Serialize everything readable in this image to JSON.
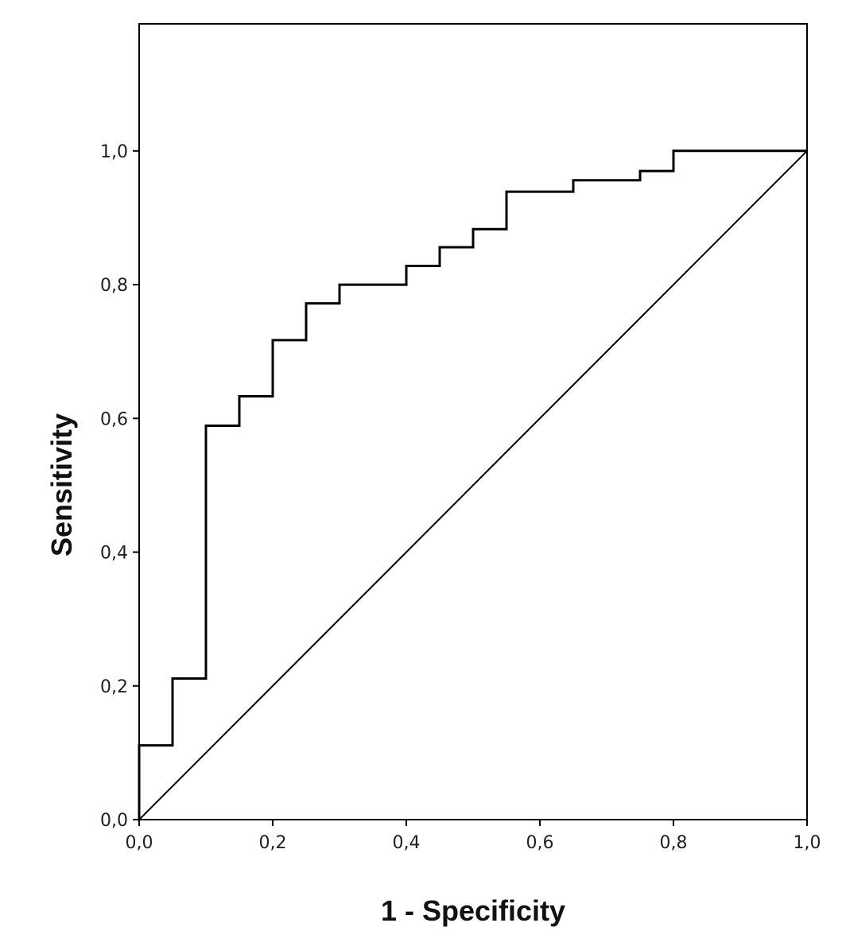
{
  "chart_data": {
    "type": "line",
    "title": "",
    "xlabel": "1 - Specificity",
    "ylabel": "Sensitivity",
    "xlim": [
      0.0,
      1.0
    ],
    "ylim": [
      0.0,
      1.19
    ],
    "x_ticks": [
      0.0,
      0.2,
      0.4,
      0.6,
      0.8,
      1.0
    ],
    "y_ticks": [
      0.0,
      0.2,
      0.4,
      0.6,
      0.8,
      1.0
    ],
    "x_tick_labels": [
      "0,0",
      "0,2",
      "0,4",
      "0,6",
      "0,8",
      "1,0"
    ],
    "y_tick_labels": [
      "0,0",
      "0,2",
      "0,4",
      "0,6",
      "0,8",
      "1,0"
    ],
    "grid": false,
    "series": [
      {
        "step": true,
        "x": [
          0.0,
          0.0,
          0.05,
          0.05,
          0.1,
          0.1,
          0.15,
          0.15,
          0.2,
          0.2,
          0.25,
          0.25,
          0.3,
          0.3,
          0.4,
          0.4,
          0.45,
          0.45,
          0.5,
          0.5,
          0.55,
          0.55,
          0.65,
          0.65,
          0.75,
          0.75,
          0.8,
          0.8,
          1.0
        ],
        "y": [
          0.0,
          0.111,
          0.111,
          0.211,
          0.211,
          0.589,
          0.589,
          0.633,
          0.633,
          0.717,
          0.717,
          0.772,
          0.772,
          0.8,
          0.8,
          0.828,
          0.828,
          0.856,
          0.856,
          0.883,
          0.883,
          0.939,
          0.939,
          0.956,
          0.956,
          0.97,
          0.97,
          1.0,
          1.0
        ],
        "color": "#000000"
      },
      {
        "x": [
          0.0,
          1.0
        ],
        "y": [
          0.0,
          1.0
        ],
        "color": "#000000"
      }
    ]
  }
}
